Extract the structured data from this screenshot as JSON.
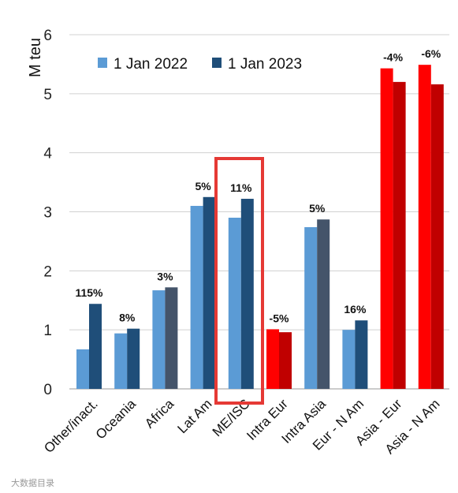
{
  "chart_data": {
    "type": "bar",
    "ylabel": "M teu",
    "ylim": [
      0,
      6
    ],
    "yticks": [
      0,
      1,
      2,
      3,
      4,
      5,
      6
    ],
    "grid": true,
    "legend_position": "top-left",
    "categories": [
      "Other/inact.",
      "Oceania",
      "Africa",
      "Lat Am",
      "ME/ISC",
      "Intra Eur",
      "Intra Asia",
      "Eur - N Am",
      "Asia - Eur",
      "Asia - N Am"
    ],
    "series": [
      {
        "name": "1 Jan 2022",
        "values": [
          0.67,
          0.94,
          1.67,
          3.1,
          2.9,
          1.01,
          2.74,
          1.0,
          5.43,
          5.49
        ]
      },
      {
        "name": "1 Jan 2023",
        "values": [
          1.44,
          1.02,
          1.72,
          3.25,
          3.22,
          0.96,
          2.87,
          1.16,
          5.2,
          5.16
        ]
      }
    ],
    "changes": [
      "115%",
      "8%",
      "3%",
      "5%",
      "11%",
      "-5%",
      "5%",
      "16%",
      "-4%",
      "-6%"
    ],
    "highlighted_category": "ME/ISC",
    "colors": {
      "series_2022": "#5b9bd5",
      "series_2023": "#1f4e79",
      "series_2023_slate": "#44546a",
      "red_light": "#ff0000",
      "red_dark": "#c00000",
      "highlight_box": "#e53935"
    }
  },
  "watermark": "大数据目录"
}
